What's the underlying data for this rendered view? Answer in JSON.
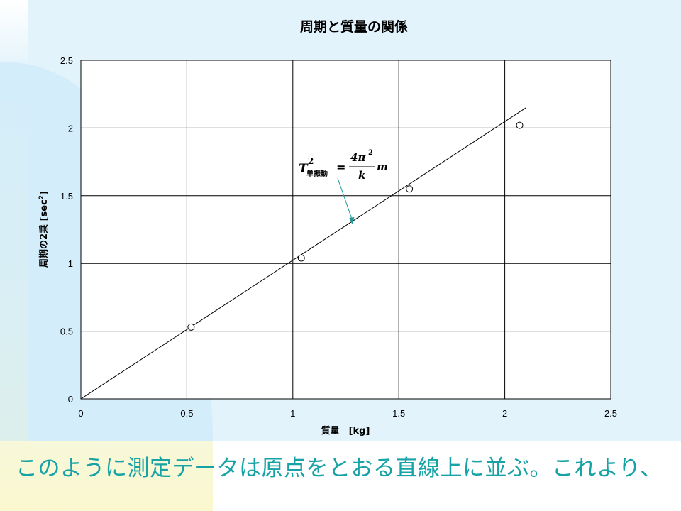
{
  "chart_data": {
    "type": "scatter",
    "title": "周期と質量の関係",
    "xlabel": "質量　[kg]",
    "ylabel": "周期の2乗 [sec²]",
    "ylabel_main": "周期の2乗 [sec",
    "ylabel_sup": "2",
    "ylabel_end": "]",
    "xlim": [
      0,
      2.5
    ],
    "ylim": [
      0,
      2.5
    ],
    "x_ticks": [
      "0",
      "0.5",
      "1",
      "1.5",
      "2",
      "2.5"
    ],
    "y_ticks": [
      "0",
      "0.5",
      "1",
      "1.5",
      "2",
      "2.5"
    ],
    "grid": true,
    "series": [
      {
        "marker": "open-circle",
        "points": [
          {
            "x": 0.52,
            "y": 0.53
          },
          {
            "x": 1.04,
            "y": 1.04
          },
          {
            "x": 1.55,
            "y": 1.55
          },
          {
            "x": 2.07,
            "y": 2.02
          }
        ]
      }
    ],
    "fit_line": {
      "x": [
        0,
        2.1
      ],
      "y": [
        0,
        2.15
      ]
    },
    "annotation": {
      "T": "T",
      "sup": "2",
      "sub": "単振動",
      "equals": "=",
      "numerator": "4π",
      "numerator_sup": "2",
      "denominator": "k",
      "m": "m",
      "arrow_color": "#1a9a9a",
      "arrow_target": {
        "x": 1.28,
        "y": 1.3
      }
    }
  },
  "caption": "このように測定データは原点をとおる直線上に並ぶ。これより、",
  "colors": {
    "caption": "#17a2a6",
    "panel": "#e3f3fc"
  }
}
